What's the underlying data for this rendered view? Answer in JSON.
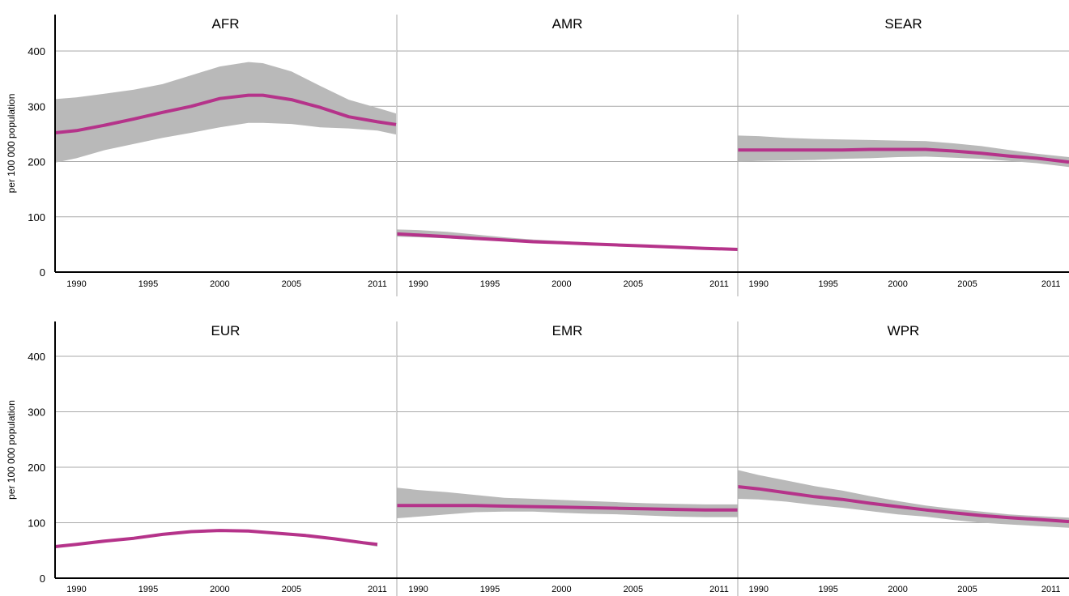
{
  "chart_data": {
    "type": "line",
    "layout": "2x3 small multiples, shared y-axis per row",
    "ylabel": "per 100 000 population",
    "ylim": [
      0,
      450
    ],
    "yticks": [
      0,
      100,
      200,
      300,
      400
    ],
    "xlim": [
      1988.5,
      2012.3
    ],
    "xticks": [
      1990,
      1995,
      2000,
      2005,
      2011
    ],
    "grid": true,
    "colors": {
      "line": "#b5338a",
      "band": "#b9b9b9",
      "grid": "#aaaaaa",
      "axis": "#000000"
    },
    "panels": [
      {
        "name": "AFR",
        "x": [
          1988.5,
          1990,
          1992,
          1994,
          1996,
          1998,
          2000,
          2002,
          2003,
          2005,
          2007,
          2009,
          2011,
          2012.3
        ],
        "y": [
          252,
          256,
          266,
          277,
          289,
          300,
          314,
          320,
          320,
          312,
          298,
          281,
          272,
          267
        ],
        "lower": [
          198,
          206,
          221,
          232,
          243,
          252,
          262,
          270,
          270,
          268,
          262,
          260,
          256,
          249
        ],
        "upper": [
          313,
          316,
          323,
          330,
          340,
          356,
          372,
          380,
          378,
          363,
          337,
          312,
          297,
          287
        ]
      },
      {
        "name": "AMR",
        "x": [
          1988.5,
          1990,
          1992,
          1994,
          1996,
          1998,
          2000,
          2002,
          2004,
          2006,
          2008,
          2010,
          2012.3
        ],
        "y": [
          69,
          67,
          64,
          61,
          58,
          55,
          53,
          51,
          49,
          47,
          45,
          43,
          41
        ],
        "lower": [
          64,
          63,
          61,
          58,
          56,
          53,
          51,
          49,
          47,
          45,
          43,
          41,
          39
        ],
        "upper": [
          77,
          76,
          73,
          68,
          63,
          59,
          56,
          53,
          51,
          49,
          47,
          45,
          43
        ]
      },
      {
        "name": "SEAR",
        "x": [
          1988.5,
          1990,
          1992,
          1994,
          1996,
          1998,
          2000,
          2002,
          2004,
          2006,
          2008,
          2010,
          2012.3
        ],
        "y": [
          221,
          221,
          221,
          221,
          221,
          222,
          222,
          222,
          219,
          215,
          210,
          206,
          199
        ],
        "lower": [
          200,
          201,
          202,
          203,
          205,
          206,
          208,
          209,
          207,
          205,
          201,
          197,
          190
        ],
        "upper": [
          247,
          246,
          243,
          241,
          240,
          239,
          238,
          237,
          233,
          228,
          221,
          214,
          208
        ]
      },
      {
        "name": "EUR",
        "x": [
          1988.5,
          1990,
          1992,
          1994,
          1996,
          1998,
          2000,
          2002,
          2004,
          2006,
          2008,
          2010,
          2011
        ],
        "y": [
          57,
          61,
          67,
          72,
          79,
          84,
          86,
          85,
          81,
          77,
          71,
          64,
          61
        ],
        "lower": [
          55,
          59,
          65,
          70,
          77,
          82,
          84,
          83,
          79,
          75,
          69,
          61,
          57
        ],
        "upper": [
          58,
          62,
          68,
          73,
          80,
          85,
          87,
          86,
          82,
          78,
          72,
          65,
          63
        ]
      },
      {
        "name": "EMR",
        "x": [
          1988.5,
          1990,
          1992,
          1994,
          1996,
          1998,
          2000,
          2002,
          2004,
          2006,
          2008,
          2010,
          2012.3
        ],
        "y": [
          131,
          131,
          131,
          131,
          130,
          129,
          128,
          127,
          126,
          125,
          124,
          123,
          123
        ],
        "lower": [
          108,
          111,
          115,
          119,
          120,
          120,
          118,
          116,
          115,
          113,
          111,
          110,
          110
        ],
        "upper": [
          163,
          159,
          155,
          150,
          145,
          143,
          141,
          139,
          137,
          135,
          134,
          133,
          133
        ]
      },
      {
        "name": "WPR",
        "x": [
          1988.5,
          1990,
          1992,
          1994,
          1996,
          1998,
          2000,
          2002,
          2004,
          2006,
          2008,
          2010,
          2012.3
        ],
        "y": [
          165,
          161,
          154,
          147,
          142,
          135,
          129,
          123,
          118,
          113,
          109,
          106,
          102
        ],
        "lower": [
          143,
          142,
          138,
          132,
          127,
          121,
          115,
          111,
          105,
          100,
          97,
          94,
          91
        ],
        "upper": [
          195,
          186,
          176,
          166,
          158,
          148,
          139,
          131,
          125,
          120,
          115,
          112,
          109
        ]
      }
    ]
  }
}
